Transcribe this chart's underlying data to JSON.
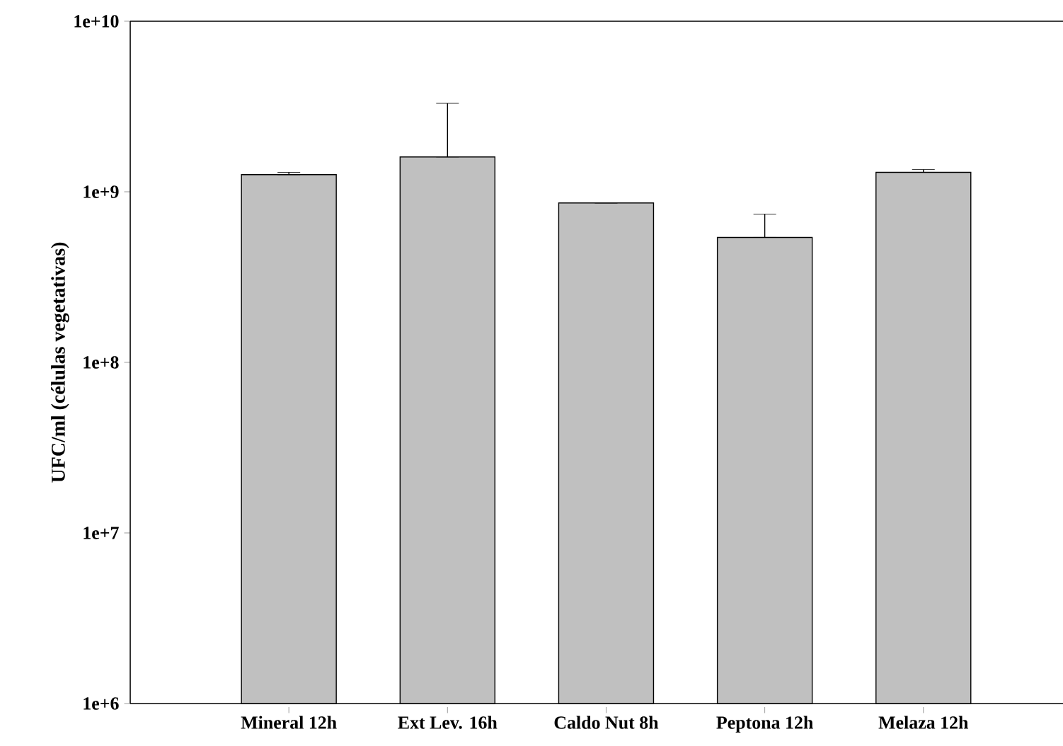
{
  "chart_data": {
    "type": "bar",
    "ylabel": "UFC/ml (células vegetativas)",
    "categories": [
      "Mineral 12h",
      "Ext Lev. 16h",
      "Caldo Nut 8h",
      "Peptona 12h",
      "Melaza 12h"
    ],
    "values": [
      1260000000,
      1600000000,
      860000000,
      540000000,
      1300000000
    ],
    "errors": [
      [
        1260000000,
        1300000000
      ],
      [
        1600000000,
        3300000000
      ],
      [
        860000000,
        860000000
      ],
      [
        540000000,
        740000000
      ],
      [
        1300000000,
        1350000000
      ]
    ],
    "color": "#c0c0c0",
    "log": "y",
    "ylim": [
      1000000,
      10000000000
    ],
    "yticks": [
      {
        "value": 1000000,
        "label": "1e+6"
      },
      {
        "value": 10000000,
        "label": "1e+7"
      },
      {
        "value": 100000000,
        "label": "1e+8"
      },
      {
        "value": 1000000000,
        "label": "1e+9"
      },
      {
        "value": 10000000000,
        "label": "1e+10"
      }
    ]
  }
}
